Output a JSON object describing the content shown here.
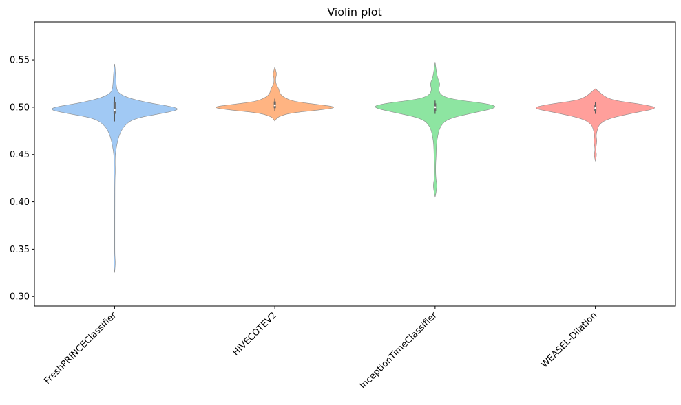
{
  "chart_data": {
    "type": "violin",
    "title": "Violin plot",
    "xlabel": "",
    "ylabel": "",
    "ylim": [
      0.29,
      0.59
    ],
    "yticks": [
      "0.30",
      "0.35",
      "0.40",
      "0.45",
      "0.50",
      "0.55"
    ],
    "grid": false,
    "categories": [
      "FreshPRINCEClassifier",
      "HIVECOTEV2",
      "InceptionTimeClassifier",
      "WEASEL-Dilation"
    ],
    "colors": [
      "#a1c9f4",
      "#ffb482",
      "#8de5a1",
      "#ff9f9b"
    ],
    "series": [
      {
        "name": "FreshPRINCEClassifier",
        "median": 0.497,
        "q1": 0.493,
        "q3": 0.505,
        "whisker_low": 0.485,
        "whisker_high": 0.511,
        "profile": [
          [
            0.326,
            0.002
          ],
          [
            0.335,
            0.012
          ],
          [
            0.34,
            0.008
          ],
          [
            0.345,
            0.004
          ],
          [
            0.36,
            0.004
          ],
          [
            0.4,
            0.004
          ],
          [
            0.425,
            0.006
          ],
          [
            0.432,
            0.012
          ],
          [
            0.44,
            0.008
          ],
          [
            0.45,
            0.01
          ],
          [
            0.462,
            0.04
          ],
          [
            0.47,
            0.07
          ],
          [
            0.48,
            0.14
          ],
          [
            0.488,
            0.3
          ],
          [
            0.493,
            0.7
          ],
          [
            0.497,
            1.0
          ],
          [
            0.5,
            0.95
          ],
          [
            0.505,
            0.5
          ],
          [
            0.51,
            0.2
          ],
          [
            0.515,
            0.06
          ],
          [
            0.52,
            0.03
          ],
          [
            0.53,
            0.02
          ],
          [
            0.54,
            0.01
          ],
          [
            0.545,
            0.002
          ]
        ]
      },
      {
        "name": "HIVECOTEV2",
        "median": 0.502,
        "q1": 0.499,
        "q3": 0.506,
        "whisker_low": 0.496,
        "whisker_high": 0.509,
        "profile": [
          [
            0.486,
            0.005
          ],
          [
            0.49,
            0.05
          ],
          [
            0.494,
            0.25
          ],
          [
            0.497,
            0.7
          ],
          [
            0.5,
            1.0
          ],
          [
            0.503,
            0.65
          ],
          [
            0.506,
            0.3
          ],
          [
            0.51,
            0.15
          ],
          [
            0.514,
            0.08
          ],
          [
            0.52,
            0.06
          ],
          [
            0.524,
            0.02
          ],
          [
            0.53,
            0.01
          ],
          [
            0.535,
            0.03
          ],
          [
            0.54,
            0.01
          ],
          [
            0.542,
            0.002
          ]
        ]
      },
      {
        "name": "InceptionTimeClassifier",
        "median": 0.5,
        "q1": 0.496,
        "q3": 0.504,
        "whisker_low": 0.493,
        "whisker_high": 0.507,
        "profile": [
          [
            0.406,
            0.004
          ],
          [
            0.412,
            0.02
          ],
          [
            0.418,
            0.03
          ],
          [
            0.425,
            0.01
          ],
          [
            0.44,
            0.008
          ],
          [
            0.45,
            0.018
          ],
          [
            0.46,
            0.02
          ],
          [
            0.47,
            0.04
          ],
          [
            0.48,
            0.08
          ],
          [
            0.488,
            0.2
          ],
          [
            0.494,
            0.6
          ],
          [
            0.5,
            1.0
          ],
          [
            0.504,
            0.8
          ],
          [
            0.508,
            0.3
          ],
          [
            0.512,
            0.1
          ],
          [
            0.518,
            0.05
          ],
          [
            0.525,
            0.08
          ],
          [
            0.53,
            0.04
          ],
          [
            0.54,
            0.015
          ],
          [
            0.547,
            0.002
          ]
        ]
      },
      {
        "name": "WEASEL-Dilation",
        "median": 0.499,
        "q1": 0.496,
        "q3": 0.502,
        "whisker_low": 0.493,
        "whisker_high": 0.505,
        "profile": [
          [
            0.444,
            0.004
          ],
          [
            0.45,
            0.02
          ],
          [
            0.455,
            0.004
          ],
          [
            0.46,
            0.015
          ],
          [
            0.465,
            0.025
          ],
          [
            0.47,
            0.01
          ],
          [
            0.476,
            0.03
          ],
          [
            0.482,
            0.06
          ],
          [
            0.488,
            0.2
          ],
          [
            0.494,
            0.6
          ],
          [
            0.499,
            1.0
          ],
          [
            0.503,
            0.75
          ],
          [
            0.507,
            0.3
          ],
          [
            0.511,
            0.15
          ],
          [
            0.515,
            0.08
          ],
          [
            0.519,
            0.01
          ]
        ]
      }
    ]
  }
}
